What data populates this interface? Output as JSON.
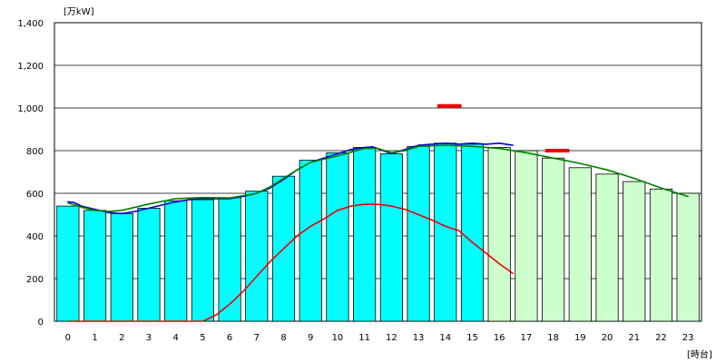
{
  "chart_data": {
    "type": "bar",
    "y_unit_label": "[万kW]",
    "x_unit_label": "[時台]",
    "ylim": [
      0,
      1400
    ],
    "y_ticks": [
      "0",
      "200",
      "400",
      "600",
      "800",
      "1,000",
      "1,200",
      "1,400"
    ],
    "y_tick_values": [
      0,
      200,
      400,
      600,
      800,
      1000,
      1200,
      1400
    ],
    "categories": [
      "0",
      "1",
      "2",
      "3",
      "4",
      "5",
      "6",
      "7",
      "8",
      "9",
      "10",
      "11",
      "12",
      "13",
      "14",
      "15",
      "16",
      "17",
      "18",
      "19",
      "20",
      "21",
      "22",
      "23"
    ],
    "grid": true,
    "colors": {
      "actual_bar": "#00FFFF",
      "forecast_bar": "#CCFFCC",
      "bar_outline": "#000000",
      "blue_line": "#0000CC",
      "green_line": "#008000",
      "red_line": "#EE0000",
      "grid": "#000000"
    },
    "series": [
      {
        "kind": "bar",
        "values": [
          540,
          520,
          505,
          530,
          565,
          570,
          580,
          610,
          680,
          755,
          790,
          815,
          785,
          820,
          835,
          830,
          815,
          800,
          765,
          720,
          690,
          655,
          620,
          600
        ],
        "actual_through_index": 15
      },
      {
        "kind": "line",
        "color_key": "blue_line",
        "x": [
          0,
          0.2,
          0.5,
          1,
          1.5,
          2,
          2.5,
          3,
          3.5,
          4,
          4.5,
          5,
          5.5,
          6,
          6.5,
          7,
          7.5,
          8,
          8.5,
          9,
          9.5,
          10,
          10.5,
          11,
          11.3,
          11.7,
          12,
          12.5,
          13,
          13.5,
          14,
          14.5,
          15,
          15.5,
          16,
          16.5
        ],
        "values": [
          560,
          558,
          540,
          525,
          510,
          505,
          515,
          530,
          545,
          560,
          570,
          575,
          575,
          575,
          585,
          600,
          625,
          665,
          710,
          745,
          765,
          785,
          805,
          815,
          818,
          800,
          785,
          805,
          825,
          830,
          835,
          830,
          835,
          830,
          835,
          825
        ]
      },
      {
        "kind": "line",
        "color_key": "green_line",
        "x": [
          0,
          0.5,
          1,
          1.5,
          2,
          3,
          4,
          5,
          6,
          7,
          7.5,
          8,
          8.5,
          9,
          10,
          11,
          11.5,
          12,
          12.5,
          13,
          14,
          15,
          16,
          17,
          18,
          19,
          20,
          21,
          22,
          23
        ],
        "values": [
          555,
          535,
          520,
          515,
          520,
          550,
          575,
          580,
          578,
          600,
          630,
          670,
          710,
          745,
          775,
          810,
          810,
          790,
          800,
          820,
          825,
          820,
          810,
          790,
          765,
          740,
          710,
          670,
          625,
          585
        ]
      },
      {
        "kind": "line",
        "color_key": "red_line",
        "x": [
          0,
          5,
          5.5,
          6,
          6.5,
          7,
          7.5,
          8,
          8.5,
          9,
          9.5,
          10,
          10.5,
          11,
          11.5,
          12,
          12.5,
          13,
          13.5,
          14,
          14.5,
          15,
          15.5,
          16,
          16.5
        ],
        "values": [
          0,
          0,
          30,
          80,
          140,
          210,
          280,
          340,
          400,
          445,
          480,
          520,
          540,
          548,
          548,
          540,
          525,
          500,
          475,
          445,
          425,
          370,
          320,
          270,
          225
        ]
      },
      {
        "kind": "segment",
        "color_key": "red_line",
        "x": [
          13.7,
          14.6
        ],
        "values": [
          1010,
          1010
        ]
      },
      {
        "kind": "segment",
        "color_key": "red_line",
        "x": [
          17.7,
          18.6
        ],
        "values": [
          800,
          800
        ]
      }
    ]
  }
}
